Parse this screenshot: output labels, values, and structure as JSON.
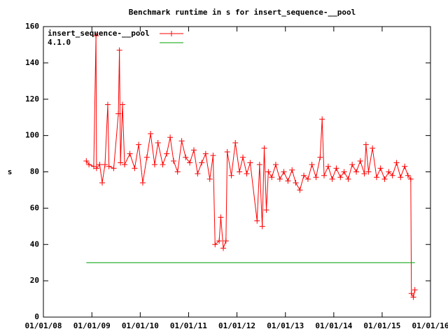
{
  "chart_data": {
    "type": "line",
    "title": "Benchmark runtime in s for insert_sequence-__pool",
    "y_label": "s",
    "xlim": [
      "2008-01-01",
      "2016-01-01"
    ],
    "xticks": [
      {
        "value": "2008-01-01",
        "label": "01/01/08"
      },
      {
        "value": "2009-01-01",
        "label": "01/01/09"
      },
      {
        "value": "2010-01-01",
        "label": "01/01/10"
      },
      {
        "value": "2011-01-01",
        "label": "01/01/11"
      },
      {
        "value": "2012-01-01",
        "label": "01/01/12"
      },
      {
        "value": "2013-01-01",
        "label": "01/01/13"
      },
      {
        "value": "2014-01-01",
        "label": "01/01/14"
      },
      {
        "value": "2015-01-01",
        "label": "01/01/15"
      },
      {
        "value": "2016-01-01",
        "label": "01/01/16"
      }
    ],
    "ylim": [
      0,
      160
    ],
    "yticks": [
      0,
      20,
      40,
      60,
      80,
      100,
      120,
      140,
      160
    ],
    "legend": "top-left",
    "series": [
      {
        "name": "insert_sequence-__pool",
        "color": "#ff0000",
        "markers": true,
        "x": [
          "2008-11-20",
          "2008-12-10",
          "2009-01-15",
          "2009-02-01",
          "2009-02-05",
          "2009-03-01",
          "2009-03-20",
          "2009-04-10",
          "2009-05-01",
          "2009-05-10",
          "2009-06-15",
          "2009-07-20",
          "2009-07-28",
          "2009-08-05",
          "2009-08-20",
          "2009-09-05",
          "2009-10-15",
          "2009-11-20",
          "2009-12-20",
          "2010-01-20",
          "2010-02-20",
          "2010-03-20",
          "2010-04-20",
          "2010-05-15",
          "2010-06-20",
          "2010-07-20",
          "2010-08-15",
          "2010-09-10",
          "2010-10-10",
          "2010-11-10",
          "2010-12-10",
          "2011-01-10",
          "2011-02-10",
          "2011-03-10",
          "2011-04-10",
          "2011-05-10",
          "2011-06-10",
          "2011-07-05",
          "2011-07-20",
          "2011-08-20",
          "2011-09-01",
          "2011-09-20",
          "2011-10-10",
          "2011-10-20",
          "2011-11-20",
          "2011-12-20",
          "2012-01-20",
          "2012-02-15",
          "2012-03-15",
          "2012-04-10",
          "2012-06-01",
          "2012-06-20",
          "2012-07-10",
          "2012-07-25",
          "2012-08-10",
          "2012-08-25",
          "2012-09-20",
          "2012-10-20",
          "2012-11-20",
          "2012-12-20",
          "2013-01-20",
          "2013-02-20",
          "2013-03-20",
          "2013-04-20",
          "2013-05-20",
          "2013-06-20",
          "2013-07-20",
          "2013-08-20",
          "2013-09-20",
          "2013-10-05",
          "2013-10-20",
          "2013-11-20",
          "2013-12-20",
          "2014-01-20",
          "2014-02-20",
          "2014-03-20",
          "2014-04-20",
          "2014-05-20",
          "2014-06-20",
          "2014-07-20",
          "2014-08-20",
          "2014-09-01",
          "2014-09-20",
          "2014-10-20",
          "2014-11-20",
          "2014-12-20",
          "2015-01-20",
          "2015-02-20",
          "2015-03-20",
          "2015-04-20",
          "2015-05-20",
          "2015-06-20",
          "2015-07-15",
          "2015-08-05",
          "2015-08-10",
          "2015-08-25",
          "2015-09-05"
        ],
        "values": [
          86,
          84,
          83,
          155,
          82,
          84,
          74,
          84,
          117,
          83,
          82,
          112,
          147,
          85,
          117,
          84,
          90,
          82,
          95,
          74,
          88,
          101,
          84,
          96,
          84,
          90,
          99,
          86,
          80,
          97,
          88,
          85,
          92,
          79,
          85,
          90,
          76,
          89,
          40,
          42,
          55,
          38,
          42,
          91,
          78,
          96,
          80,
          88,
          79,
          85,
          53,
          84,
          50,
          93,
          59,
          80,
          77,
          84,
          76,
          80,
          75,
          81,
          74,
          70,
          78,
          76,
          84,
          77,
          88,
          109,
          78,
          83,
          76,
          82,
          77,
          80,
          76,
          84,
          80,
          86,
          79,
          95,
          80,
          93,
          77,
          82,
          76,
          80,
          78,
          85,
          77,
          83,
          78,
          76,
          13,
          11,
          15
        ]
      },
      {
        "name": "4.1.0",
        "color": "#00a000",
        "markers": false,
        "x": [
          "2008-11-20",
          "2015-09-05"
        ],
        "values": [
          30,
          30
        ]
      }
    ]
  }
}
